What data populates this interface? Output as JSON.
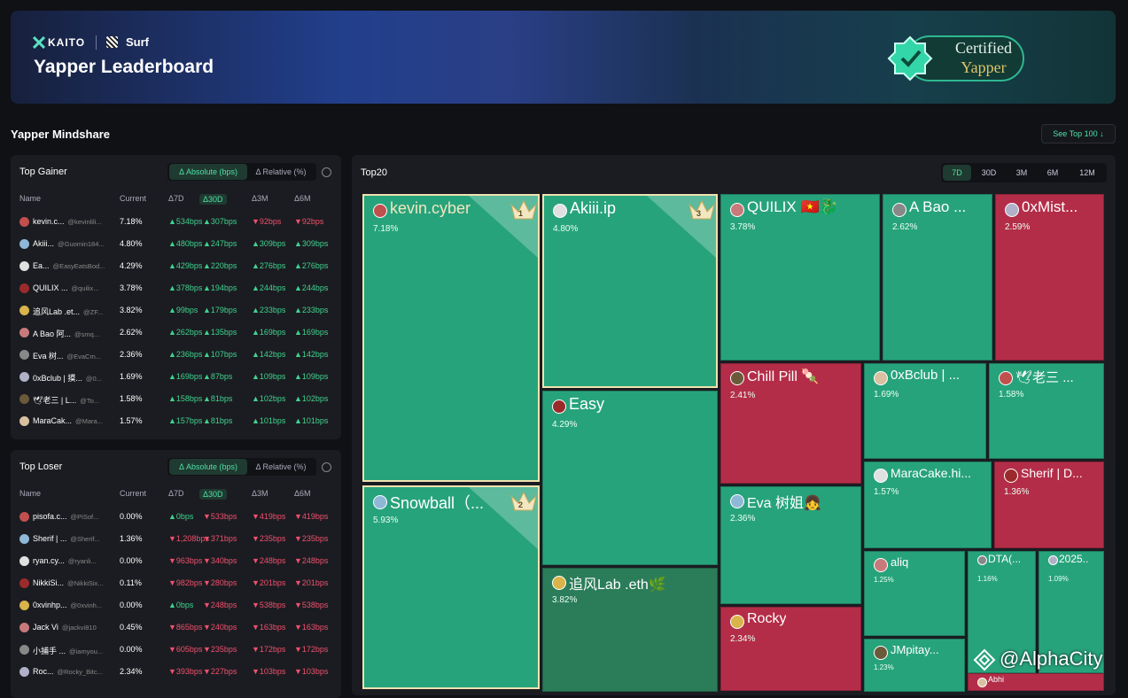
{
  "header": {
    "brand": "KAITO",
    "partner": "Surf",
    "title": "Yapper Leaderboard",
    "badge": {
      "line1": "Certified",
      "line2": "Yapper"
    }
  },
  "section_title": "Yapper Mindshare",
  "see_top_button": "See Top 100 ↓",
  "top_gainer": {
    "title": "Top Gainer",
    "tabs": [
      "Δ Absolute (bps)",
      "Δ Relative (%)"
    ],
    "active_tab": 0,
    "columns": [
      "Name",
      "Current",
      "Δ7D",
      "Δ30D",
      "Δ3M",
      "Δ6M"
    ],
    "active_column": 3,
    "rows": [
      [
        "kevin.c...",
        "@kevinlili...",
        "7.18%",
        "▲534bps",
        "▲307bps",
        "▼92bps",
        "▼92bps"
      ],
      [
        "Akiii...",
        "@Guomin184...",
        "4.80%",
        "▲480bps",
        "▲247bps",
        "▲309bps",
        "▲309bps"
      ],
      [
        "Ea...",
        "@EasyEatsBod...",
        "4.29%",
        "▲429bps",
        "▲220bps",
        "▲276bps",
        "▲276bps"
      ],
      [
        "QUILIX ...",
        "@quilix...",
        "3.78%",
        "▲378bps",
        "▲194bps",
        "▲244bps",
        "▲244bps"
      ],
      [
        "追风Lab .et...",
        "@ZF...",
        "3.82%",
        "▲99bps",
        "▲179bps",
        "▲233bps",
        "▲233bps"
      ],
      [
        "A Bao 阿...",
        "@smq...",
        "2.62%",
        "▲262bps",
        "▲135bps",
        "▲169bps",
        "▲169bps"
      ],
      [
        "Eva 树...",
        "@EvaCm...",
        "2.36%",
        "▲236bps",
        "▲107bps",
        "▲142bps",
        "▲142bps"
      ],
      [
        "0xBclub | 摸...",
        "@0...",
        "1.69%",
        "▲169bps",
        "▲87bps",
        "▲109bps",
        "▲109bps"
      ],
      [
        "🕊老三 | L...",
        "@To...",
        "1.58%",
        "▲158bps",
        "▲81bps",
        "▲102bps",
        "▲102bps"
      ],
      [
        "MaraCak...",
        "@Mara...",
        "1.57%",
        "▲157bps",
        "▲81bps",
        "▲101bps",
        "▲101bps"
      ]
    ]
  },
  "top_loser": {
    "title": "Top Loser",
    "tabs": [
      "Δ Absolute (bps)",
      "Δ Relative (%)"
    ],
    "active_tab": 0,
    "columns": [
      "Name",
      "Current",
      "Δ7D",
      "Δ30D",
      "Δ3M",
      "Δ6M"
    ],
    "active_column": 3,
    "rows": [
      [
        "pisofa.c...",
        "@PiSof...",
        "0.00%",
        "▲0bps",
        "▼533bps",
        "▼419bps",
        "▼419bps"
      ],
      [
        "Sherif | ...",
        "@Sherif...",
        "1.36%",
        "▼1,208bps",
        "▼371bps",
        "▼235bps",
        "▼235bps"
      ],
      [
        "ryan.cy...",
        "@ryanli...",
        "0.00%",
        "▼963bps",
        "▼340bps",
        "▼248bps",
        "▼248bps"
      ],
      [
        "NikkiSi...",
        "@NikkiSix...",
        "0.11%",
        "▼982bps",
        "▼280bps",
        "▼201bps",
        "▼201bps"
      ],
      [
        "0xvinhp...",
        "@0xvinh...",
        "0.00%",
        "▲0bps",
        "▼248bps",
        "▼538bps",
        "▼538bps"
      ],
      [
        "Jack Vi",
        "@jackvi810",
        "0.45%",
        "▼865bps",
        "▼240bps",
        "▼163bps",
        "▼163bps"
      ],
      [
        "小捕手 ...",
        "@iamyou...",
        "0.00%",
        "▼605bps",
        "▼235bps",
        "▼172bps",
        "▼172bps"
      ],
      [
        "Roc...",
        "@Rocky_Bitc...",
        "2.34%",
        "▼393bps",
        "▼227bps",
        "▼103bps",
        "▼103bps"
      ]
    ]
  },
  "top20": {
    "title": "Top20",
    "periods": [
      "7D",
      "30D",
      "3M",
      "6M",
      "12M"
    ],
    "active_period": 0,
    "tiles": [
      {
        "name": "kevin.cyber",
        "value": "7.18%",
        "rank": "1",
        "color": "#27a37b"
      },
      {
        "name": "Snowball（...",
        "value": "5.93%",
        "rank": "2",
        "color": "#27a37b"
      },
      {
        "name": "Akiii.ip",
        "value": "4.80%",
        "rank": "3",
        "color": "#27a37b"
      },
      {
        "name": "Easy",
        "value": "4.29%",
        "color": "#27a37b"
      },
      {
        "name": "追风Lab .eth🌿",
        "value": "3.82%",
        "color": "#2b7d59"
      },
      {
        "name": "QUILIX 🇻🇳🐉",
        "value": "3.78%",
        "color": "#27a37b"
      },
      {
        "name": "A Bao ...",
        "value": "2.62%",
        "color": "#27a37b"
      },
      {
        "name": "0xMist...",
        "value": "2.59%",
        "color": "#b42d48"
      },
      {
        "name": "Chill Pill 🍡",
        "value": "2.41%",
        "color": "#b42d48"
      },
      {
        "name": "0xBclub | ...",
        "value": "1.69%",
        "color": "#27a37b"
      },
      {
        "name": "🕊老三 ...",
        "value": "1.58%",
        "color": "#27a37b"
      },
      {
        "name": "Eva 树姐👧",
        "value": "2.36%",
        "color": "#27a37b"
      },
      {
        "name": "MaraCake.hi...",
        "value": "1.57%",
        "color": "#27a37b"
      },
      {
        "name": "Sherif | D...",
        "value": "1.36%",
        "color": "#b42d48"
      },
      {
        "name": "Rocky",
        "value": "2.34%",
        "color": "#b42d48"
      },
      {
        "name": "aliq",
        "value": "1.25%",
        "color": "#27a37b"
      },
      {
        "name": "DTA(...",
        "value": "1.16%",
        "color": "#27a37b"
      },
      {
        "name": "2025...",
        "value": "1.09%",
        "color": "#27a37b"
      },
      {
        "name": "JMpitay...",
        "value": "1.23%",
        "color": "#27a37b"
      },
      {
        "name": "Abhi",
        "color": "#b42d48"
      }
    ]
  },
  "watermark": "@AlphaCity"
}
